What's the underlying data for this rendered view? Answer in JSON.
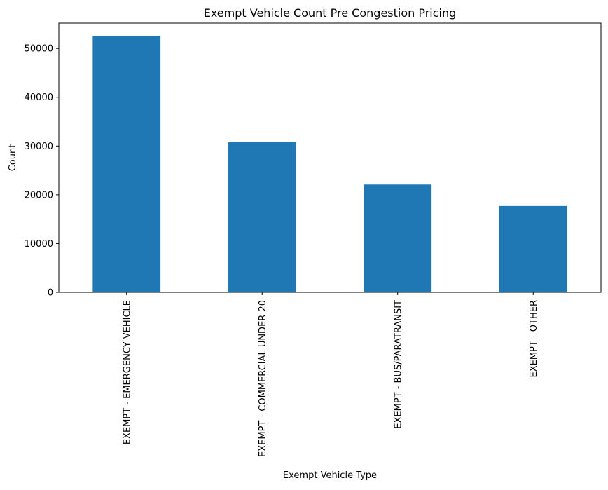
{
  "chart_data": {
    "type": "bar",
    "title": "Exempt Vehicle Count Pre Congestion Pricing",
    "xlabel": "Exempt Vehicle Type",
    "ylabel": "Count",
    "categories": [
      "EXEMPT - EMERGENCY VEHICLE",
      "EXEMPT - COMMERCIAL UNDER 20",
      "EXEMPT - BUS/PARATRANSIT",
      "EXEMPT - OTHER"
    ],
    "values": [
      52600,
      30800,
      22100,
      17700
    ],
    "ylim": [
      0,
      55200
    ],
    "yticks": [
      0,
      10000,
      20000,
      30000,
      40000,
      50000
    ],
    "ytick_labels": [
      "0",
      "10000",
      "20000",
      "30000",
      "40000",
      "50000"
    ],
    "bar_color": "#1f77b4",
    "grid": false,
    "legend": "none"
  }
}
